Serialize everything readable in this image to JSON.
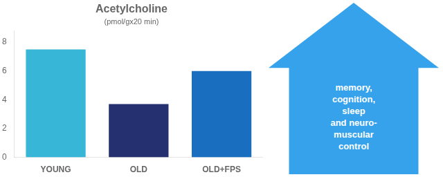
{
  "chart_data": {
    "type": "bar",
    "title": "Acetylcholine",
    "subtitle": "(pmol/gx20 min)",
    "categories": [
      "YOUNG",
      "OLD",
      "OLD+FPS"
    ],
    "values": [
      7.5,
      3.7,
      6.0
    ],
    "colors": [
      "#38b6d8",
      "#253070",
      "#1a6ec0"
    ],
    "ylim": [
      0,
      8.8
    ],
    "yticks": [
      0,
      2,
      4,
      6,
      8
    ],
    "grid": false,
    "legend": "none",
    "annotations": [
      "memory,\ncognition,\nsleep\nand neuro-\nmuscular\ncontrol"
    ]
  }
}
